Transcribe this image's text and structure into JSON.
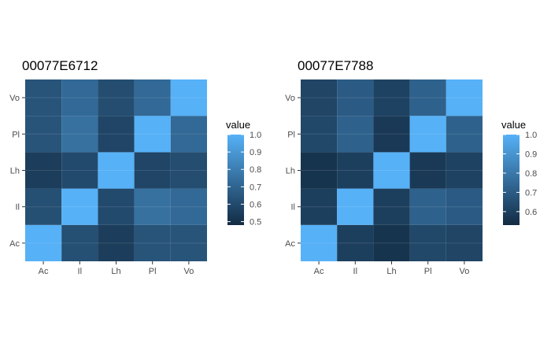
{
  "chart_data": [
    {
      "type": "heatmap",
      "title": "00077E6712",
      "xlabel": "",
      "ylabel": "",
      "x_categories": [
        "Ac",
        "Il",
        "Lh",
        "Pl",
        "Vo"
      ],
      "y_categories": [
        "Ac",
        "Il",
        "Lh",
        "Pl",
        "Vo"
      ],
      "matrix": [
        [
          1.0,
          0.62,
          0.55,
          0.64,
          0.64
        ],
        [
          0.62,
          1.0,
          0.6,
          0.75,
          0.72
        ],
        [
          0.55,
          0.6,
          1.0,
          0.58,
          0.61
        ],
        [
          0.64,
          0.75,
          0.58,
          1.0,
          0.72
        ],
        [
          0.64,
          0.72,
          0.61,
          0.72,
          1.0
        ]
      ],
      "grid": true,
      "legend": {
        "title": "value",
        "position": "right",
        "range": [
          0.48,
          1.0
        ],
        "ticks": [
          0.5,
          0.6,
          0.7,
          0.8,
          0.9,
          1.0
        ],
        "tick_labels": [
          "0.5",
          "0.6",
          "0.7",
          "0.8",
          "0.9",
          "1.0"
        ],
        "low_color": "#132B43",
        "high_color": "#56B1F7"
      }
    },
    {
      "type": "heatmap",
      "title": "00077E7788",
      "xlabel": "",
      "ylabel": "",
      "x_categories": [
        "Ac",
        "Il",
        "Lh",
        "Pl",
        "Vo"
      ],
      "y_categories": [
        "Ac",
        "Il",
        "Lh",
        "Pl",
        "Vo"
      ],
      "matrix": [
        [
          1.0,
          0.6,
          0.56,
          0.63,
          0.62
        ],
        [
          0.6,
          1.0,
          0.6,
          0.72,
          0.7
        ],
        [
          0.56,
          0.6,
          1.0,
          0.58,
          0.61
        ],
        [
          0.63,
          0.72,
          0.58,
          1.0,
          0.72
        ],
        [
          0.62,
          0.7,
          0.61,
          0.72,
          1.0
        ]
      ],
      "grid": true,
      "legend": {
        "title": "value",
        "position": "right",
        "range": [
          0.53,
          1.0
        ],
        "ticks": [
          0.6,
          0.7,
          0.8,
          0.9,
          1.0
        ],
        "tick_labels": [
          "0.6",
          "0.7",
          "0.8",
          "0.9",
          "1.0"
        ],
        "low_color": "#132B43",
        "high_color": "#56B1F7"
      }
    }
  ]
}
